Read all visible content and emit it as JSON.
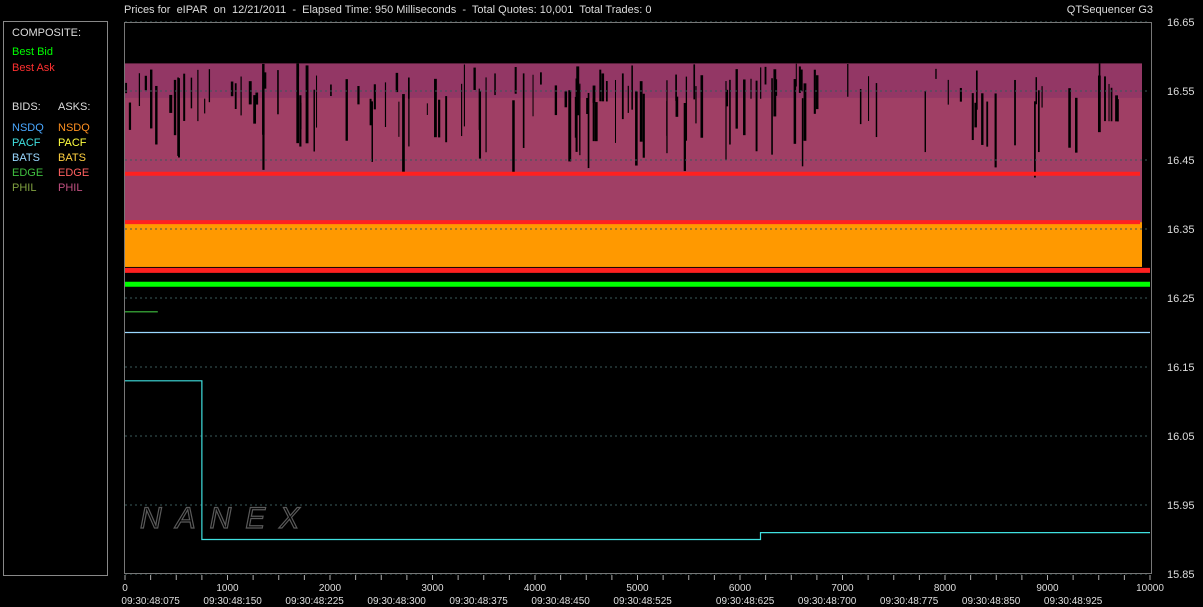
{
  "header": {
    "title": "Prices for  eIPAR  on  12/21/2011  -  Elapsed Time: 950 Milliseconds  -  Total Quotes: 10,001  Total Trades: 0",
    "app_name": "QTSequencer G3"
  },
  "legend": {
    "composite_label": "COMPOSITE:",
    "best_bid": {
      "label": "Best Bid",
      "color": "#00ff00"
    },
    "best_ask": {
      "label": "Best Ask",
      "color": "#ff2020"
    },
    "bids_label": "BIDS:",
    "asks_label": "ASKS:",
    "bids": [
      {
        "label": "NSDQ",
        "color": "#4aa8ff"
      },
      {
        "label": "PACF",
        "color": "#40e0e0"
      },
      {
        "label": "BATS",
        "color": "#9ad8ff"
      },
      {
        "label": "EDGE",
        "color": "#40c040"
      },
      {
        "label": "PHIL",
        "color": "#80a040"
      }
    ],
    "asks": [
      {
        "label": "NSDQ",
        "color": "#ff9020"
      },
      {
        "label": "PACF",
        "color": "#ffff40"
      },
      {
        "label": "BATS",
        "color": "#ffd040"
      },
      {
        "label": "EDGE",
        "color": "#ff6060"
      },
      {
        "label": "PHIL",
        "color": "#c05080"
      }
    ]
  },
  "watermark": "NANEX",
  "chart_data": {
    "type": "area",
    "title": "Prices for  eIPAR  on  12/21/2011",
    "xlim": [
      0,
      10000
    ],
    "ylim": [
      15.85,
      16.65
    ],
    "y_ticks": [
      "16.65",
      "16.55",
      "16.45",
      "16.35",
      "16.25",
      "16.15",
      "16.05",
      "15.95",
      "15.85"
    ],
    "x_ticks": [
      "0",
      "1000",
      "2000",
      "3000",
      "4000",
      "5000",
      "6000",
      "7000",
      "8000",
      "9000",
      "10000"
    ],
    "time_ticks": [
      {
        "x": 250,
        "label": "09:30:48:075"
      },
      {
        "x": 1050,
        "label": "09:30:48:150"
      },
      {
        "x": 1850,
        "label": "09:30:48:225"
      },
      {
        "x": 2650,
        "label": "09:30:48:300"
      },
      {
        "x": 3450,
        "label": "09:30:48:375"
      },
      {
        "x": 4250,
        "label": "09:30:48:450"
      },
      {
        "x": 5050,
        "label": "09:30:48:525"
      },
      {
        "x": 6050,
        "label": "09:30:48:625"
      },
      {
        "x": 6850,
        "label": "09:30:48:700"
      },
      {
        "x": 7650,
        "label": "09:30:48:775"
      },
      {
        "x": 8450,
        "label": "09:30:48:850"
      },
      {
        "x": 9250,
        "label": "09:30:48:925"
      }
    ],
    "series": [
      {
        "name": "Best Bid",
        "color": "#00ff00",
        "points": [
          [
            0,
            16.27
          ],
          [
            10000,
            16.27
          ]
        ]
      },
      {
        "name": "Best Ask",
        "color": "#ff2020",
        "points": [
          [
            0,
            16.29
          ],
          [
            10000,
            16.29
          ]
        ]
      },
      {
        "name": "PACF",
        "color": "#40e0e0",
        "points": [
          [
            0,
            16.13
          ],
          [
            750,
            16.13
          ],
          [
            750,
            15.9
          ],
          [
            6200,
            15.9
          ],
          [
            6200,
            15.91
          ],
          [
            10000,
            15.91
          ]
        ]
      },
      {
        "name": "EDGE",
        "color": "#40c040",
        "points": [
          [
            0,
            16.23
          ],
          [
            320,
            16.23
          ]
        ]
      },
      {
        "name": "BATS",
        "color": "#9ad8ff",
        "points": [
          [
            0,
            16.2
          ],
          [
            10000,
            16.2
          ]
        ]
      }
    ],
    "bands": [
      {
        "name": "NSDQ ask",
        "color": "#ff9900",
        "y_low": 16.295,
        "y_high": 16.36
      },
      {
        "name": "BATS ask",
        "color": "#ff9900",
        "y_low": 16.36,
        "y_high": 16.54
      },
      {
        "name": "PHIL ask",
        "color": "#9b3a6a",
        "y_low": 16.36,
        "y_high": 16.59
      }
    ],
    "ask_lines": [
      {
        "color": "#ff2020",
        "y": 16.36
      },
      {
        "color": "#ff2020",
        "y": 16.43
      }
    ]
  }
}
